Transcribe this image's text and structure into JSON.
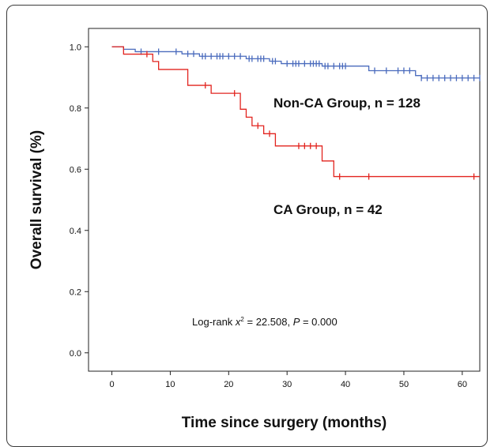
{
  "chart_data": {
    "type": "line",
    "title": "",
    "xlabel": "Time since surgery (months)",
    "ylabel": "Overall survival (%)",
    "xlim": [
      -4,
      63
    ],
    "ylim": [
      -0.06,
      1.06
    ],
    "xticks": [
      0,
      10,
      20,
      30,
      40,
      50,
      60
    ],
    "xtick_labels": [
      "0",
      "10",
      "20",
      "30",
      "40",
      "50",
      "60"
    ],
    "yticks": [
      0.0,
      0.2,
      0.4,
      0.6,
      0.8,
      1.0
    ],
    "ytick_labels": [
      "0.0",
      "0.2",
      "0.4",
      "0.6",
      "0.8",
      "1.0"
    ],
    "grid": false,
    "series": [
      {
        "name": "Non-CA Group, n = 128",
        "color": "#4a6bbd",
        "steps": [
          [
            0,
            1.0
          ],
          [
            2,
            0.992
          ],
          [
            4,
            0.984
          ],
          [
            12,
            0.977
          ],
          [
            15,
            0.969
          ],
          [
            23,
            0.961
          ],
          [
            27,
            0.953
          ],
          [
            29,
            0.945
          ],
          [
            36,
            0.937
          ],
          [
            44,
            0.922
          ],
          [
            52,
            0.906
          ],
          [
            53,
            0.898
          ],
          [
            63,
            0.898
          ]
        ],
        "censor_x": [
          5,
          8,
          11,
          13,
          14,
          15.5,
          16,
          17,
          18,
          18.5,
          19,
          20,
          21,
          22,
          23.5,
          24,
          25,
          25.5,
          26,
          27.5,
          28,
          30,
          31,
          31.5,
          32,
          33,
          34,
          34.5,
          35,
          35.5,
          36.5,
          37,
          38,
          39,
          39.5,
          40,
          45,
          47,
          49,
          50,
          51,
          53,
          54,
          55,
          56,
          57,
          58,
          59,
          60,
          61,
          62,
          63
        ]
      },
      {
        "name": "CA Group, n = 42",
        "color": "#e2241f",
        "steps": [
          [
            0,
            1.0
          ],
          [
            2,
            0.976
          ],
          [
            7,
            0.952
          ],
          [
            8,
            0.926
          ],
          [
            13,
            0.874
          ],
          [
            17,
            0.848
          ],
          [
            22,
            0.796
          ],
          [
            23,
            0.77
          ],
          [
            24,
            0.742
          ],
          [
            26,
            0.716
          ],
          [
            28,
            0.676
          ],
          [
            36,
            0.627
          ],
          [
            38,
            0.576
          ],
          [
            63,
            0.576
          ]
        ],
        "censor_x": [
          6,
          16,
          21,
          25,
          27,
          32,
          33,
          34,
          35,
          39,
          44,
          62
        ]
      }
    ],
    "annotations": {
      "non_ca_label": "Non-CA Group, n = 128",
      "ca_label": "CA Group, n = 42",
      "stat_prefix": "Log-rank ",
      "stat_x": "x",
      "stat_sup": "2",
      "stat_mid": " = 22.508, ",
      "stat_p": "P",
      "stat_end": " = 0.000"
    }
  }
}
